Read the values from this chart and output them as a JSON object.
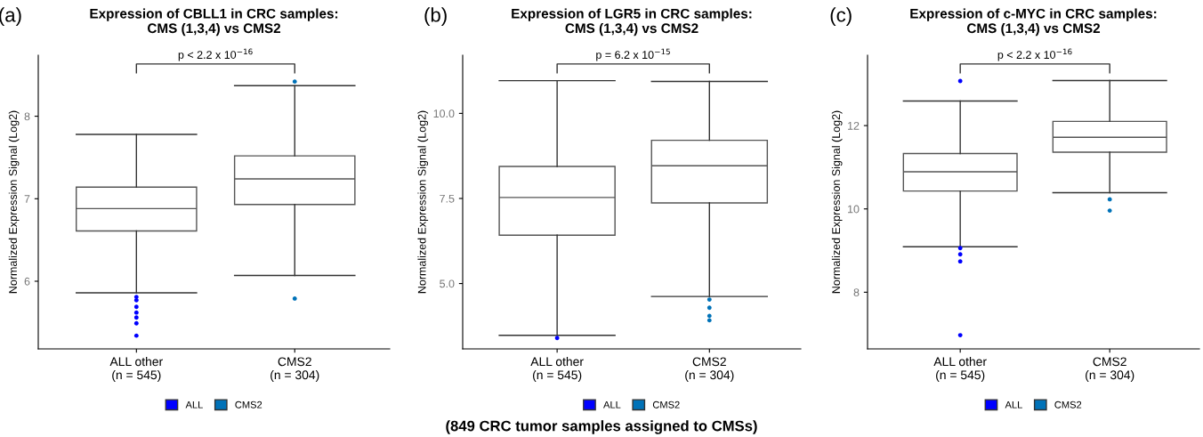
{
  "chart_data": [
    {
      "type": "box",
      "title": "Expression of CBLL1 in CRC samples:\nCMS (1,3,4) vs CMS2",
      "ylabel": "Normalized Expression Signal (Log2)",
      "categories": [
        "ALL other\n(n = 545)",
        "CMS2\n(n = 304)"
      ],
      "ylim": [
        5.18,
        8.74
      ],
      "yticks": [
        6,
        7,
        8
      ],
      "grid": false,
      "legend": "bottom",
      "annotations": [
        "(a)",
        "p < 2.2 x 10$^{−16}$"
      ],
      "boxes": [
        {
          "low": 5.86,
          "q1": 6.61,
          "median": 6.88,
          "q3": 7.14,
          "high": 7.78
        },
        {
          "low": 6.07,
          "q1": 6.93,
          "median": 7.24,
          "q3": 7.52,
          "high": 8.37
        }
      ],
      "series": [
        {
          "name": "ALL",
          "type": "scatter",
          "color": "#0000ff",
          "x": [
            "ALL other\n(n = 545)",
            "ALL other\n(n = 545)",
            "ALL other\n(n = 545)",
            "ALL other\n(n = 545)",
            "ALL other\n(n = 545)",
            "ALL other\n(n = 545)",
            "ALL other\n(n = 545)"
          ],
          "values": [
            5.34,
            5.49,
            5.56,
            5.62,
            5.69,
            5.77,
            5.81
          ]
        },
        {
          "name": "CMS2",
          "type": "scatter",
          "color": "#0072b8",
          "x": [
            "CMS2\n(n = 304)",
            "CMS2\n(n = 304)"
          ],
          "values": [
            5.79,
            8.42
          ]
        }
      ]
    },
    {
      "type": "box",
      "title": "Expression of LGR5 in CRC samples:\nCMS (1,3,4) vs CMS2",
      "ylabel": "Normalized Expression Signal (Log2)",
      "categories": [
        "ALL other\n(n = 545)",
        "CMS2\n(n = 304)"
      ],
      "ylim": [
        3.08,
        11.71
      ],
      "yticks": [
        {
          "value": 5,
          "label": "5.0"
        },
        7.5,
        {
          "value": 10,
          "label": "10.0"
        }
      ],
      "grid": false,
      "legend": "bottom",
      "annotations": [
        "(b)",
        "p = 6.2 x 10$^{−15}$",
        "(849 CRC tumor samples assigned to CMSs)"
      ],
      "boxes": [
        {
          "low": 3.48,
          "q1": 6.42,
          "median": 7.53,
          "q3": 8.44,
          "high": 10.96
        },
        {
          "low": 4.62,
          "q1": 7.37,
          "median": 8.46,
          "q3": 9.21,
          "high": 10.94
        }
      ],
      "series": [
        {
          "name": "ALL",
          "type": "scatter",
          "color": "#0000ff",
          "x": [
            "ALL other\n(n = 545)"
          ],
          "values": [
            3.4
          ]
        },
        {
          "name": "CMS2",
          "type": "scatter",
          "color": "#0072b8",
          "x": [
            "CMS2\n(n = 304)",
            "CMS2\n(n = 304)",
            "CMS2\n(n = 304)",
            "CMS2\n(n = 304)"
          ],
          "values": [
            3.92,
            4.05,
            4.29,
            4.53
          ]
        }
      ]
    },
    {
      "type": "box",
      "title": "Expression of c-MYC in CRC samples:\nCMS (1,3,4) vs CMS2",
      "ylabel": "Normalized Expression Signal (Log2)",
      "categories": [
        "ALL other\n(n = 545)",
        "CMS2\n(n = 304)"
      ],
      "ylim": [
        6.64,
        13.69
      ],
      "yticks": [
        8,
        10,
        12
      ],
      "grid": false,
      "legend": "bottom",
      "annotations": [
        "(c)",
        "p < 2.2 x 10$^{−16}$"
      ],
      "boxes": [
        {
          "low": 9.09,
          "q1": 10.43,
          "median": 10.89,
          "q3": 11.33,
          "high": 12.59
        },
        {
          "low": 10.39,
          "q1": 11.36,
          "median": 11.72,
          "q3": 12.1,
          "high": 13.08
        }
      ],
      "series": [
        {
          "name": "ALL",
          "type": "scatter",
          "color": "#0000ff",
          "x": [
            "ALL other\n(n = 545)",
            "ALL other\n(n = 545)",
            "ALL other\n(n = 545)",
            "ALL other\n(n = 545)",
            "ALL other\n(n = 545)"
          ],
          "values": [
            13.07,
            6.97,
            8.91,
            8.74,
            9.06
          ]
        },
        {
          "name": "CMS2",
          "type": "scatter",
          "color": "#0072b8",
          "x": [
            "CMS2\n(n = 304)",
            "CMS2\n(n = 304)"
          ],
          "values": [
            10.23,
            9.96
          ]
        }
      ]
    }
  ]
}
